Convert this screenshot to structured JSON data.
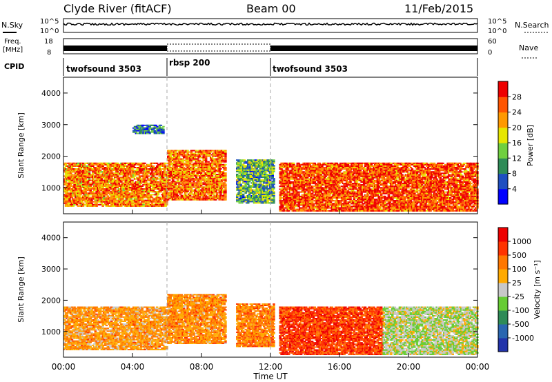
{
  "header": {
    "station": "Clyde River (fitACF)",
    "beam": "Beam 00",
    "date": "11/Feb/2015"
  },
  "noise_panel": {
    "left_label": "N.Sky",
    "right_label": "N.Search",
    "left_ticks": [
      "10^5",
      "10^0"
    ],
    "right_ticks": [
      "10^5",
      "10^0"
    ]
  },
  "freq_panel": {
    "left_label_line1": "Freq.",
    "left_label_line2": "[MHz]",
    "left_ticks": [
      "18",
      "8"
    ],
    "right_label": "Nave",
    "right_ticks": [
      "60",
      "0"
    ]
  },
  "cpid_panel": {
    "label": "CPID",
    "segments": [
      {
        "name": "twofsound 3503",
        "start": 0,
        "end": 6
      },
      {
        "name": "rbsp 200",
        "start": 6,
        "end": 12
      },
      {
        "name": "twofsound 3503",
        "start": 12,
        "end": 24
      }
    ]
  },
  "power_panel": {
    "ylabel": "Slant Range [km]",
    "cbar_label": "Power [dB]",
    "cbar_ticks": [
      "28",
      "24",
      "20",
      "16",
      "12",
      "8",
      "4"
    ],
    "cbar_colors": [
      "#0000ff",
      "#1e4fc0",
      "#2e8b57",
      "#6fcf3f",
      "#e6e600",
      "#ff9900",
      "#ff5500",
      "#ee0000"
    ]
  },
  "velocity_panel": {
    "ylabel": "Slant Range [km]",
    "cbar_label": "Velocity [m s⁻¹]",
    "cbar_ticks": [
      "1000",
      "500",
      "100",
      "25",
      "-25",
      "-100",
      "-500",
      "-1000"
    ],
    "cbar_colors": [
      "#2233aa",
      "#2a66b0",
      "#2e8b57",
      "#66cc33",
      "#c8c8c8",
      "#ffaa00",
      "#ff7700",
      "#ff3300",
      "#ee0000"
    ]
  },
  "x_axis": {
    "label": "Time UT",
    "ticks": [
      "00:00",
      "04:00",
      "08:00",
      "12:00",
      "16:00",
      "20:00",
      "00:00"
    ]
  },
  "chart_data": {
    "type": "heatmap",
    "x_range_hours": [
      0,
      24
    ],
    "y_range_km": [
      180,
      4500
    ],
    "y_ticks": [
      1000,
      2000,
      3000,
      4000
    ],
    "dashed_time_markers_hours": [
      6,
      12
    ],
    "power_clusters": [
      {
        "t0": 0.0,
        "t1": 6.0,
        "r0": 400,
        "r1": 1800,
        "level": 0.78
      },
      {
        "t0": 6.0,
        "t1": 9.4,
        "r0": 600,
        "r1": 2200,
        "level": 0.82
      },
      {
        "t0": 10.0,
        "t1": 12.2,
        "r0": 500,
        "r1": 1900,
        "level": 0.35
      },
      {
        "t0": 12.5,
        "t1": 24.0,
        "r0": 250,
        "r1": 1800,
        "level": 0.9
      },
      {
        "t0": 4.0,
        "t1": 5.8,
        "r0": 2700,
        "r1": 3000,
        "level": 0.2
      }
    ],
    "velocity_clusters": [
      {
        "t0": 0.0,
        "t1": 6.0,
        "r0": 400,
        "r1": 1800,
        "level": -0.35
      },
      {
        "t0": 6.0,
        "t1": 9.4,
        "r0": 600,
        "r1": 2200,
        "level": -0.4
      },
      {
        "t0": 10.0,
        "t1": 12.2,
        "r0": 500,
        "r1": 1900,
        "level": -0.45
      },
      {
        "t0": 12.5,
        "t1": 18.5,
        "r0": 250,
        "r1": 1800,
        "level": -0.75
      },
      {
        "t0": 18.5,
        "t1": 24.0,
        "r0": 250,
        "r1": 1800,
        "level": 0.05
      }
    ]
  }
}
